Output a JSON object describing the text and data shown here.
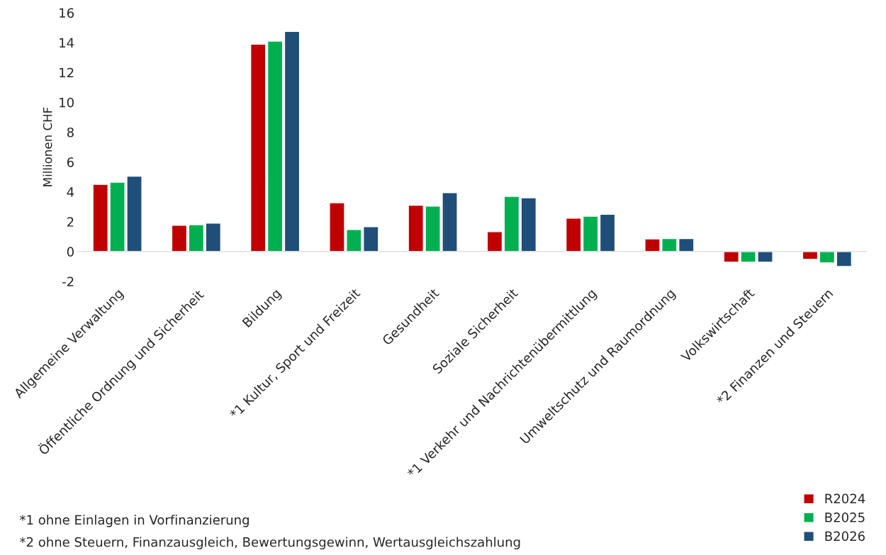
{
  "chart_data": {
    "type": "bar",
    "categories": [
      "Allgemeine Verwaltung",
      "Öffentliche Ordnung und Sicherheit",
      "Bildung",
      "*1 Kultur, Sport und Freizeit",
      "Gesundheit",
      "Soziale Sicherheit",
      "*1 Verkehr und Nachrichtenübermittlung",
      "Umweltschutz und Raumordnung",
      "Volkswirtschaft",
      "*2 Finanzen und Steuern"
    ],
    "series": [
      {
        "name": "R2024",
        "color": "#c00000",
        "values": [
          4.5,
          1.76,
          13.9,
          3.27,
          3.1,
          1.33,
          2.23,
          0.85,
          -0.71,
          -0.52
        ]
      },
      {
        "name": "B2025",
        "color": "#00b050",
        "values": [
          4.65,
          1.8,
          14.1,
          1.47,
          3.04,
          3.7,
          2.37,
          0.87,
          -0.71,
          -0.76
        ]
      },
      {
        "name": "B2026",
        "color": "#1f4e79",
        "values": [
          5.05,
          1.9,
          14.75,
          1.66,
          3.94,
          3.6,
          2.5,
          0.87,
          -0.71,
          -1.0
        ]
      }
    ],
    "ylabel": "Millionen CHF",
    "ylim": [
      -2,
      16
    ],
    "yticks": [
      -2,
      0,
      2,
      4,
      6,
      8,
      10,
      12,
      14,
      16
    ],
    "legend": "bottom right",
    "annotations": [
      "*1 ohne Einlagen in Vorfinanzierung",
      "*2 ohne Steuern, Finanzausgleich, Bewertungsgewinn, Wertausgleichszahlung"
    ]
  }
}
